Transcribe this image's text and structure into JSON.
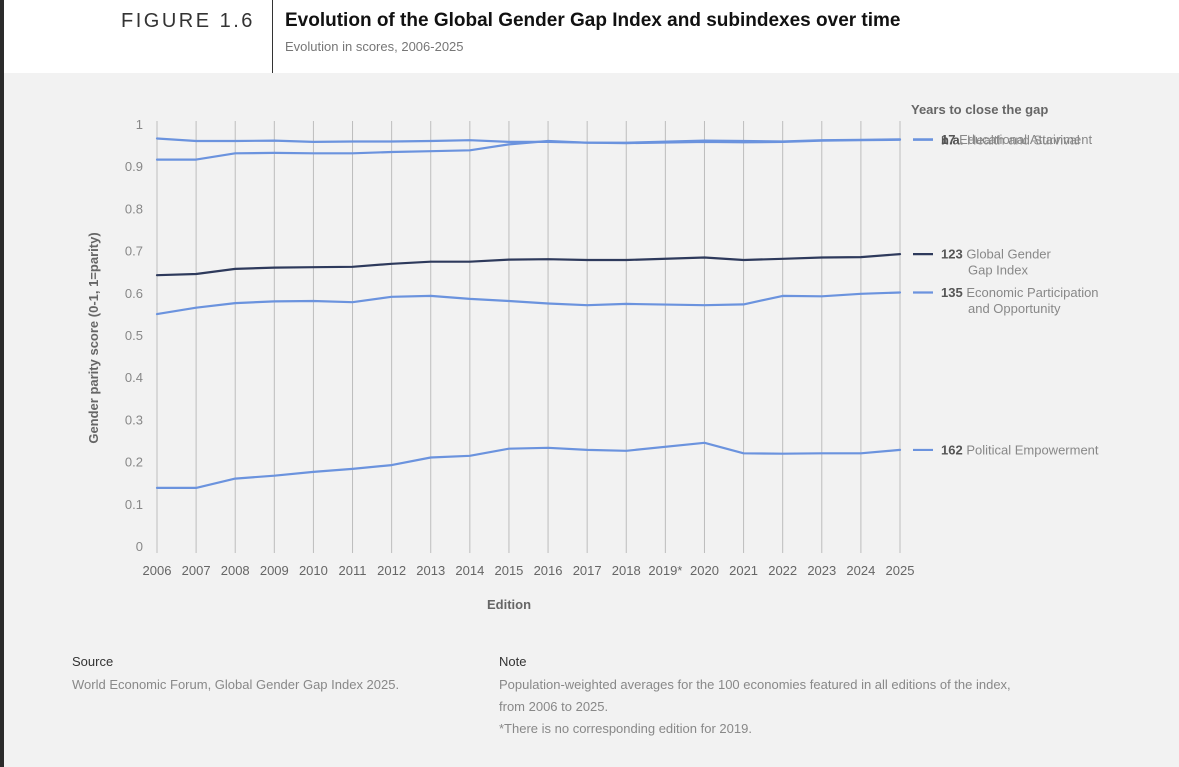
{
  "figure_label": "FIGURE 1.6",
  "title": "Evolution of the Global Gender Gap Index and subindexes over time",
  "subtitle": "Evolution in scores, 2006-2025",
  "footer": {
    "source_heading": "Source",
    "source_text": "World Economic Forum, Global Gender Gap Index 2025.",
    "note_heading": "Note",
    "note_lines": [
      "Population-weighted averages for the 100 economies featured in all editions of the index,",
      "from 2006 to 2025.",
      "*There is no corresponding edition for 2019."
    ]
  },
  "chart_data": {
    "type": "line",
    "xlabel": "Edition",
    "ylabel": "Gender parity score (0-1, 1=parity)",
    "ylim": [
      0,
      1
    ],
    "yticks": [
      "0",
      "0.1",
      "0.2",
      "0.3",
      "0.4",
      "0.5",
      "0.6",
      "0.7",
      "0.8",
      "0.9",
      "1"
    ],
    "x": [
      "2006",
      "2007",
      "2008",
      "2009",
      "2010",
      "2011",
      "2012",
      "2013",
      "2014",
      "2015",
      "2016",
      "2017",
      "2018",
      "2019*",
      "2020",
      "2021",
      "2022",
      "2023",
      "2024",
      "2025"
    ],
    "grid": "vertical",
    "legend_title": "Years to close the gap",
    "legend_placement": "right",
    "series": [
      {
        "name": "Health and Survival",
        "years_to_close": "n.a.",
        "color": "#6b93de",
        "values": [
          0.968,
          0.962,
          0.962,
          0.963,
          0.96,
          0.961,
          0.961,
          0.962,
          0.964,
          0.96,
          0.96,
          0.958,
          0.957,
          null,
          0.96,
          0.959,
          0.96,
          0.963,
          0.964,
          0.965
        ]
      },
      {
        "name": "Educational Attainment",
        "years_to_close": "17",
        "color": "#6b93de",
        "values": [
          0.918,
          0.918,
          0.933,
          0.934,
          0.933,
          0.933,
          0.936,
          0.938,
          0.94,
          0.954,
          0.962,
          0.958,
          0.958,
          null,
          0.963,
          0.962,
          0.961,
          0.964,
          0.965,
          0.966
        ]
      },
      {
        "name": "Global Gender Gap Index",
        "years_to_close": "123",
        "color": "#2e3a5c",
        "values": [
          0.644,
          0.647,
          0.659,
          0.662,
          0.663,
          0.664,
          0.671,
          0.676,
          0.676,
          0.681,
          0.682,
          0.68,
          0.68,
          null,
          0.686,
          0.68,
          0.683,
          0.686,
          0.687,
          0.694
        ]
      },
      {
        "name": "Economic Participation and Opportunity",
        "years_to_close": "135",
        "color": "#6b93de",
        "values": [
          0.552,
          0.567,
          0.578,
          0.582,
          0.583,
          0.58,
          0.593,
          0.595,
          0.588,
          0.583,
          0.577,
          0.573,
          0.576,
          null,
          0.573,
          0.575,
          0.595,
          0.594,
          0.6,
          0.603
        ]
      },
      {
        "name": "Political Empowerment",
        "years_to_close": "162",
        "color": "#6b93de",
        "values": [
          0.14,
          0.14,
          0.162,
          0.169,
          0.178,
          0.185,
          0.194,
          0.212,
          0.216,
          0.233,
          0.235,
          0.23,
          0.228,
          null,
          0.247,
          0.222,
          0.221,
          0.222,
          0.222,
          0.23
        ]
      }
    ],
    "legend_items": [
      {
        "value": "n.a.",
        "lines": [
          "Health and Survival"
        ],
        "series_index": 0
      },
      {
        "value": "17",
        "lines": [
          "Educational Attainment"
        ],
        "series_index": 1
      },
      {
        "value": "123",
        "lines": [
          "Global Gender",
          "Gap Index"
        ],
        "series_index": 2
      },
      {
        "value": "135",
        "lines": [
          "Economic Participation",
          "and Opportunity"
        ],
        "series_index": 3
      },
      {
        "value": "162",
        "lines": [
          "Political Empowerment"
        ],
        "series_index": 4
      }
    ]
  }
}
